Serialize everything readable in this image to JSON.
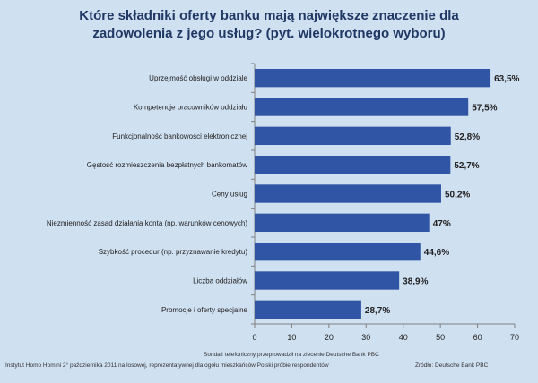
{
  "header": {
    "title_line1": "Które składniki oferty banku mają największe znaczenie dla",
    "title_line2": "zadowolenia z jego usług? (pyt. wielokrotnego wyboru)"
  },
  "chart_data": {
    "type": "bar",
    "orientation": "horizontal",
    "title": "Które składniki oferty banku mają największe znaczenie dla zadowolenia z jego usług? (pyt. wielokrotnego wyboru)",
    "categories": [
      "Uprzejmość obsługi w oddziale",
      "Kompetencje pracowników oddziału",
      "Funkcjonalność bankowości elektronicznej",
      "Gęstość rozmieszczenia bezpłatnych bankomatów",
      "Ceny usług",
      "Niezmienność zasad działania konta (np. warunków cenowych)",
      "Szybkość procedur (np. przyznawanie kredytu)",
      "Liczba oddziałów",
      "Promocje i oferty specjalne"
    ],
    "values": [
      63.5,
      57.5,
      52.8,
      52.7,
      50.2,
      47,
      44.6,
      38.9,
      28.7
    ],
    "value_labels": [
      "63,5%",
      "57,5%",
      "52,8%",
      "52,7%",
      "50,2%",
      "47%",
      "44,6%",
      "38,9%",
      "28,7%"
    ],
    "xlim": [
      0,
      70
    ],
    "xticks": [
      "0",
      "10",
      "20",
      "30",
      "40",
      "50",
      "60",
      "70"
    ],
    "grid": false,
    "legend": "none",
    "bar_color": "#2f55a4"
  },
  "footer": {
    "source_left_line1": "Sondaż telefoniczny przeprowadził na zlecenie Deutsche Bank PBC",
    "source_left_line2": "Instytut Homo Homini 2° października 2011 na losowej, reprezentatywnej dla ogółu mieszkańców Polski próbie respondentów",
    "source_right": "Źródło: Deutsche Bank PBC"
  }
}
